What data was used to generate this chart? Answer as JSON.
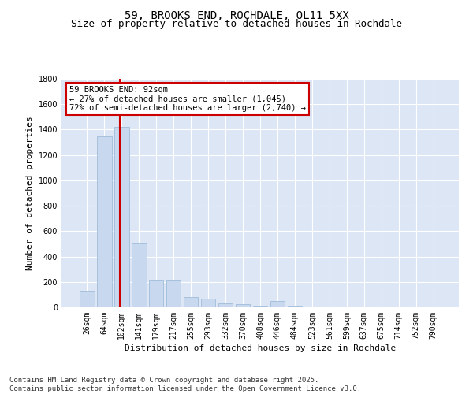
{
  "title1": "59, BROOKS END, ROCHDALE, OL11 5XX",
  "title2": "Size of property relative to detached houses in Rochdale",
  "xlabel": "Distribution of detached houses by size in Rochdale",
  "ylabel": "Number of detached properties",
  "categories": [
    "26sqm",
    "64sqm",
    "102sqm",
    "141sqm",
    "179sqm",
    "217sqm",
    "255sqm",
    "293sqm",
    "332sqm",
    "370sqm",
    "408sqm",
    "446sqm",
    "484sqm",
    "523sqm",
    "561sqm",
    "599sqm",
    "637sqm",
    "675sqm",
    "714sqm",
    "752sqm",
    "790sqm"
  ],
  "values": [
    130,
    1350,
    1420,
    500,
    220,
    220,
    80,
    70,
    30,
    25,
    15,
    50,
    10,
    0,
    0,
    0,
    0,
    0,
    0,
    0,
    0
  ],
  "bar_color": "#c8d9ef",
  "bar_edge_color": "#a0bcd8",
  "vline_color": "#cc0000",
  "vline_x": 1.92,
  "annotation_text": "59 BROOKS END: 92sqm\n← 27% of detached houses are smaller (1,045)\n72% of semi-detached houses are larger (2,740) →",
  "annotation_box_color": "#ffffff",
  "annotation_box_edge": "#cc0000",
  "ylim": [
    0,
    1800
  ],
  "yticks": [
    0,
    200,
    400,
    600,
    800,
    1000,
    1200,
    1400,
    1600,
    1800
  ],
  "footnote": "Contains HM Land Registry data © Crown copyright and database right 2025.\nContains public sector information licensed under the Open Government Licence v3.0.",
  "plot_bg_color": "#dce6f5",
  "grid_color": "#ffffff",
  "title_fontsize": 10,
  "subtitle_fontsize": 9,
  "axis_label_fontsize": 8,
  "tick_fontsize": 7,
  "annotation_fontsize": 7.5,
  "footnote_fontsize": 6.5
}
